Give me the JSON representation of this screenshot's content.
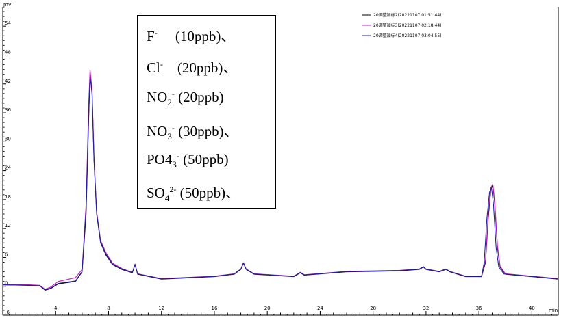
{
  "chart_data": {
    "type": "line",
    "xlabel": "min",
    "ylabel": "mV",
    "xlim": [
      0,
      42
    ],
    "ylim": [
      -6,
      58
    ],
    "x_ticks": [
      4,
      8,
      12,
      16,
      20,
      24,
      28,
      32,
      36,
      40
    ],
    "y_ticks": [
      -6,
      0,
      6,
      12,
      18,
      24,
      30,
      36,
      42,
      48,
      54
    ],
    "grid": false,
    "legend_position": "top-right",
    "series": [
      {
        "name": "20调整加标2(20221107 01:51:44)",
        "color": "#000000",
        "points": [
          [
            0,
            0.3
          ],
          [
            2,
            0.2
          ],
          [
            2.8,
            0.1
          ],
          [
            3.2,
            -0.8
          ],
          [
            3.6,
            -0.5
          ],
          [
            4.2,
            0.5
          ],
          [
            5.5,
            1.0
          ],
          [
            6.0,
            3.0
          ],
          [
            6.3,
            15
          ],
          [
            6.5,
            35
          ],
          [
            6.6,
            44
          ],
          [
            6.75,
            40
          ],
          [
            6.9,
            26
          ],
          [
            7.1,
            15
          ],
          [
            7.4,
            9
          ],
          [
            7.8,
            6.5
          ],
          [
            8.3,
            4.5
          ],
          [
            9,
            3.5
          ],
          [
            9.8,
            2.8
          ],
          [
            10,
            4.5
          ],
          [
            10.2,
            2.5
          ],
          [
            12,
            1.5
          ],
          [
            16,
            2.0
          ],
          [
            17.5,
            2.5
          ],
          [
            18,
            3.5
          ],
          [
            18.2,
            4.8
          ],
          [
            18.4,
            3.5
          ],
          [
            19,
            2.5
          ],
          [
            22,
            2.0
          ],
          [
            22.5,
            2.8
          ],
          [
            22.8,
            2.3
          ],
          [
            26,
            3.0
          ],
          [
            30,
            3.2
          ],
          [
            31.5,
            3.5
          ],
          [
            31.8,
            4.0
          ],
          [
            32,
            3.5
          ],
          [
            33,
            3.0
          ],
          [
            33.5,
            3.5
          ],
          [
            33.8,
            3.0
          ],
          [
            35,
            2.0
          ],
          [
            36.2,
            2.0
          ],
          [
            36.5,
            5
          ],
          [
            36.7,
            14
          ],
          [
            36.9,
            20
          ],
          [
            37.05,
            21
          ],
          [
            37.2,
            17
          ],
          [
            37.4,
            8
          ],
          [
            37.6,
            4
          ],
          [
            38,
            2.5
          ],
          [
            40,
            2.0
          ],
          [
            42,
            1.5
          ]
        ]
      },
      {
        "name": "20调整加标3(20221107 02:18:44)",
        "color": "#c020c0",
        "points": [
          [
            0,
            0.3
          ],
          [
            2,
            0.3
          ],
          [
            2.8,
            0.2
          ],
          [
            3.2,
            -0.6
          ],
          [
            3.6,
            -0.2
          ],
          [
            4.2,
            1.0
          ],
          [
            5.5,
            1.8
          ],
          [
            6.0,
            3.5
          ],
          [
            6.3,
            17
          ],
          [
            6.5,
            38
          ],
          [
            6.6,
            45
          ],
          [
            6.75,
            41
          ],
          [
            6.9,
            27
          ],
          [
            7.1,
            15.5
          ],
          [
            7.4,
            9.5
          ],
          [
            7.8,
            7
          ],
          [
            8.3,
            4.8
          ],
          [
            9,
            3.7
          ],
          [
            9.8,
            2.9
          ],
          [
            10,
            4.6
          ],
          [
            10.2,
            2.6
          ],
          [
            12,
            1.6
          ],
          [
            16,
            2.1
          ],
          [
            17.5,
            2.6
          ],
          [
            18,
            3.6
          ],
          [
            18.2,
            4.9
          ],
          [
            18.4,
            3.6
          ],
          [
            19,
            2.6
          ],
          [
            22,
            2.1
          ],
          [
            22.5,
            2.9
          ],
          [
            22.8,
            2.4
          ],
          [
            26,
            3.1
          ],
          [
            30,
            3.3
          ],
          [
            31.5,
            3.6
          ],
          [
            31.8,
            4.1
          ],
          [
            32,
            3.6
          ],
          [
            33,
            3.1
          ],
          [
            33.5,
            3.6
          ],
          [
            33.8,
            3.1
          ],
          [
            35,
            2.1
          ],
          [
            36.2,
            2.1
          ],
          [
            36.5,
            5.5
          ],
          [
            36.7,
            15
          ],
          [
            36.9,
            20.5
          ],
          [
            37.05,
            21.2
          ],
          [
            37.2,
            17.5
          ],
          [
            37.4,
            8.5
          ],
          [
            37.6,
            4.2
          ],
          [
            38,
            2.6
          ],
          [
            40,
            2.1
          ],
          [
            42,
            1.6
          ]
        ]
      },
      {
        "name": "20调整加标4(20221107 03:04:55)",
        "color": "#2020a0",
        "points": [
          [
            0,
            0.3
          ],
          [
            2,
            0.2
          ],
          [
            2.8,
            0.1
          ],
          [
            3.2,
            -0.7
          ],
          [
            3.6,
            -0.4
          ],
          [
            4.2,
            0.6
          ],
          [
            5.5,
            1.1
          ],
          [
            6.0,
            3.1
          ],
          [
            6.3,
            16
          ],
          [
            6.5,
            36
          ],
          [
            6.6,
            43.5
          ],
          [
            6.75,
            40.5
          ],
          [
            6.9,
            26.5
          ],
          [
            7.1,
            15.2
          ],
          [
            7.4,
            9.2
          ],
          [
            7.8,
            6.7
          ],
          [
            8.3,
            4.6
          ],
          [
            9,
            3.6
          ],
          [
            9.8,
            2.85
          ],
          [
            10,
            4.55
          ],
          [
            10.2,
            2.55
          ],
          [
            12,
            1.55
          ],
          [
            16,
            2.05
          ],
          [
            17.5,
            2.55
          ],
          [
            18,
            3.55
          ],
          [
            18.2,
            4.85
          ],
          [
            18.4,
            3.55
          ],
          [
            19,
            2.55
          ],
          [
            22,
            2.05
          ],
          [
            22.5,
            2.85
          ],
          [
            22.8,
            2.35
          ],
          [
            26,
            3.05
          ],
          [
            30,
            3.25
          ],
          [
            31.5,
            3.55
          ],
          [
            31.8,
            4.05
          ],
          [
            32,
            3.55
          ],
          [
            33,
            3.05
          ],
          [
            33.5,
            3.55
          ],
          [
            33.8,
            3.05
          ],
          [
            35,
            2.05
          ],
          [
            36.2,
            2.05
          ],
          [
            36.4,
            5
          ],
          [
            36.6,
            14
          ],
          [
            36.8,
            19.5
          ],
          [
            36.95,
            20.5
          ],
          [
            37.1,
            17
          ],
          [
            37.3,
            8
          ],
          [
            37.5,
            4
          ],
          [
            37.9,
            2.55
          ],
          [
            40,
            2.05
          ],
          [
            42,
            1.55
          ]
        ]
      }
    ]
  },
  "annotation": {
    "lines": [
      {
        "base": "F",
        "sup": "-",
        "sub": "",
        "tail": "　 (10ppb)、"
      },
      {
        "base": "Cl",
        "sup": "-",
        "sub": "",
        "tail": "　(20ppb)、"
      },
      {
        "base": "NO",
        "sub": "2",
        "sup": "-",
        "tail": " (20ppb)"
      },
      {
        "base": "NO",
        "sub": "3",
        "sup": "-",
        "tail": " (30ppb)、"
      },
      {
        "base": "PO4",
        "sub": "3",
        "sup": "-",
        "tail": " (50ppb)"
      },
      {
        "base": "SO",
        "sub": "4",
        "sup": "2-",
        "tail": " (50ppb)、"
      }
    ]
  }
}
